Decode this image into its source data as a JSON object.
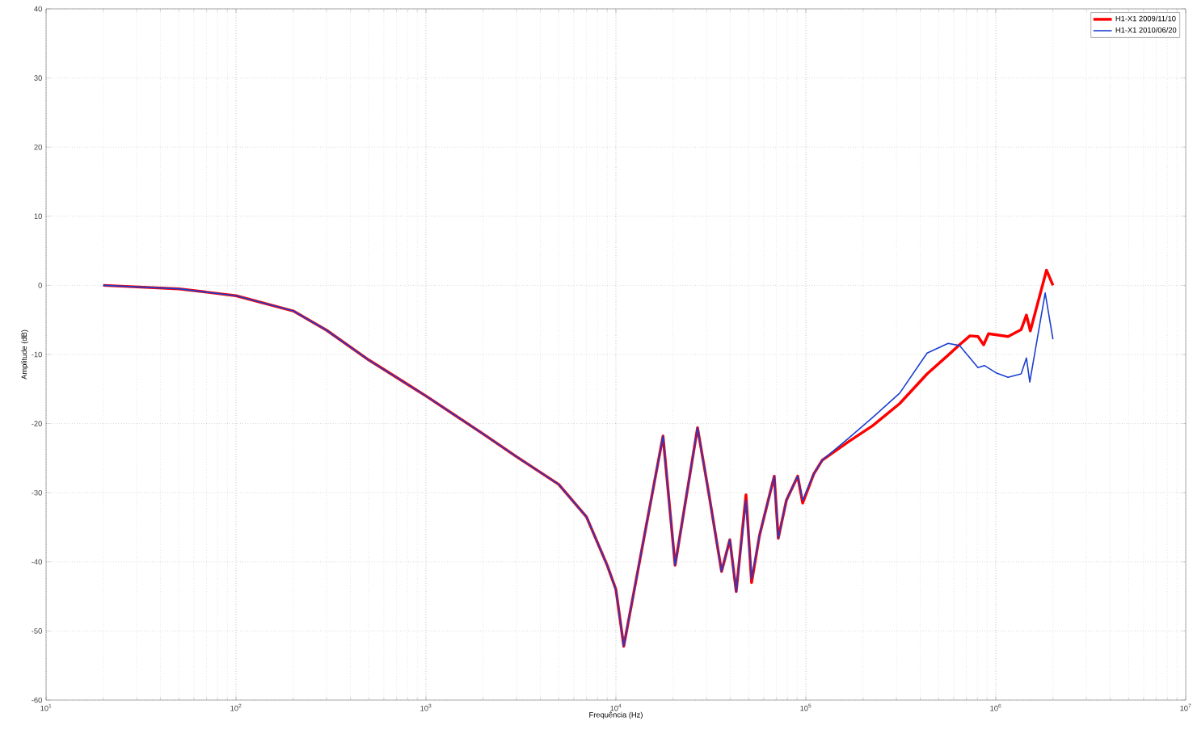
{
  "chart_data": {
    "type": "line",
    "xlabel": "Frequência (Hz)",
    "ylabel": "Amplitude (dB)",
    "log": "x",
    "grid": true,
    "legend": "top right",
    "xlim": [
      10,
      10000000
    ],
    "ylim": [
      -60,
      40
    ],
    "xticks": [
      {
        "value": 10,
        "label": "10$^{1}$"
      },
      {
        "value": 100,
        "label": "10$^{2}$"
      },
      {
        "value": 1000,
        "label": "10$^{3}$"
      },
      {
        "value": 10000,
        "label": "10$^{4}$"
      },
      {
        "value": 100000,
        "label": "10$^{5}$"
      },
      {
        "value": 1000000,
        "label": "10$^{6}$"
      },
      {
        "value": 10000000,
        "label": "10$^{7}$"
      }
    ],
    "yticks": [
      -60,
      -50,
      -40,
      -30,
      -20,
      -10,
      0,
      10,
      20,
      30,
      40
    ],
    "series": [
      {
        "name": "H1-X1 2009/11/10",
        "color": "#ff0000",
        "x": [
          20,
          50,
          100,
          200,
          300,
          500,
          1000,
          2000,
          3000,
          5000,
          7000,
          9000,
          10000,
          11000,
          17700,
          20500,
          26900,
          30800,
          36000,
          39800,
          43000,
          48400,
          51800,
          57000,
          68200,
          71600,
          79000,
          90600,
          96200,
          110000,
          122000,
          168000,
          225000,
          312000,
          435000,
          561000,
          644000,
          731000,
          806000,
          863000,
          916000,
          1160000,
          1360000,
          1450000,
          1520000,
          1850000,
          2000000
        ],
        "values": [
          0,
          -0.5,
          -1.5,
          -3.7,
          -6.5,
          -10.8,
          -16,
          -21.5,
          -24.8,
          -28.8,
          -33.5,
          -40.5,
          -44,
          -52.2,
          -21.8,
          -40.5,
          -20.6,
          -30,
          -41.4,
          -36.8,
          -44.3,
          -30.3,
          -43,
          -36.2,
          -27.6,
          -36.6,
          -31.1,
          -27.6,
          -31.5,
          -27.3,
          -25.3,
          -22.6,
          -20.3,
          -17.1,
          -12.8,
          -10.1,
          -8.6,
          -7.3,
          -7.4,
          -8.6,
          -7,
          -7.4,
          -6.4,
          -4.3,
          -6.6,
          2.2,
          0
        ]
      },
      {
        "name": "H1-X1 2010/06/20",
        "color": "#1a3fd0",
        "x": [
          20,
          50,
          100,
          200,
          300,
          500,
          1000,
          2000,
          3000,
          5000,
          7000,
          9000,
          10000,
          11000,
          17700,
          20500,
          26900,
          30800,
          36000,
          39800,
          43000,
          48400,
          51800,
          57000,
          68200,
          71600,
          79000,
          90600,
          96200,
          110000,
          122000,
          168000,
          225000,
          312000,
          435000,
          561000,
          644000,
          806000,
          871000,
          1010000,
          1160000,
          1360000,
          1450000,
          1510000,
          1820000,
          2000000
        ],
        "values": [
          0,
          -0.5,
          -1.5,
          -3.7,
          -6.5,
          -10.8,
          -16,
          -21.5,
          -24.8,
          -28.8,
          -33.5,
          -40.5,
          -44,
          -52.2,
          -21.8,
          -40.5,
          -20.6,
          -30,
          -41.4,
          -36.8,
          -44.3,
          -31.1,
          -42.5,
          -36.2,
          -27.6,
          -36.6,
          -31.1,
          -27.6,
          -31.1,
          -27.3,
          -25.3,
          -22.1,
          -19.1,
          -15.6,
          -9.8,
          -8.4,
          -8.7,
          -11.9,
          -11.6,
          -12.7,
          -13.3,
          -12.8,
          -10.5,
          -14,
          -1.1,
          -7.8
        ]
      }
    ]
  }
}
